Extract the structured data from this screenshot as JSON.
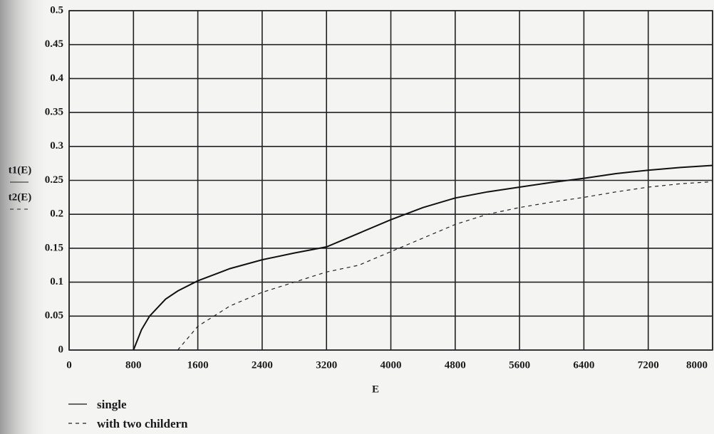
{
  "chart_data": {
    "type": "line",
    "x_label": "E",
    "y_labels": [
      "t1(E)",
      "t2(E)"
    ],
    "x": [
      800,
      900,
      1000,
      1200,
      1350,
      1600,
      2000,
      2400,
      2800,
      3200,
      3600,
      4000,
      4400,
      4800,
      5200,
      5600,
      6000,
      6400,
      6800,
      7200,
      7600,
      8000
    ],
    "series": [
      {
        "name": "single",
        "color": "#111111",
        "dash": "solid",
        "values": [
          0,
          0.03,
          0.05,
          0.075,
          0.087,
          0.102,
          0.12,
          0.133,
          0.143,
          0.152,
          0.172,
          0.192,
          0.21,
          0.224,
          0.233,
          0.24,
          0.247,
          0.253,
          0.26,
          0.265,
          0.269,
          0.272
        ]
      },
      {
        "name": "with two childern",
        "color": "#222222",
        "dash": "dashed",
        "values": [
          null,
          null,
          null,
          null,
          0,
          0.035,
          0.065,
          0.085,
          0.1,
          0.115,
          0.125,
          0.145,
          0.165,
          0.185,
          0.2,
          0.21,
          0.218,
          0.225,
          0.233,
          0.24,
          0.245,
          0.248
        ]
      }
    ],
    "xlim": [
      0,
      8000
    ],
    "xticks": [
      0,
      800,
      1600,
      2400,
      3200,
      4000,
      4800,
      5600,
      6400,
      7200,
      8000
    ],
    "ylim": [
      0,
      0.5
    ],
    "yticks": [
      0,
      0.05,
      0.1,
      0.15,
      0.2,
      0.25,
      0.3,
      0.35,
      0.4,
      0.45,
      0.5
    ],
    "grid": true
  }
}
